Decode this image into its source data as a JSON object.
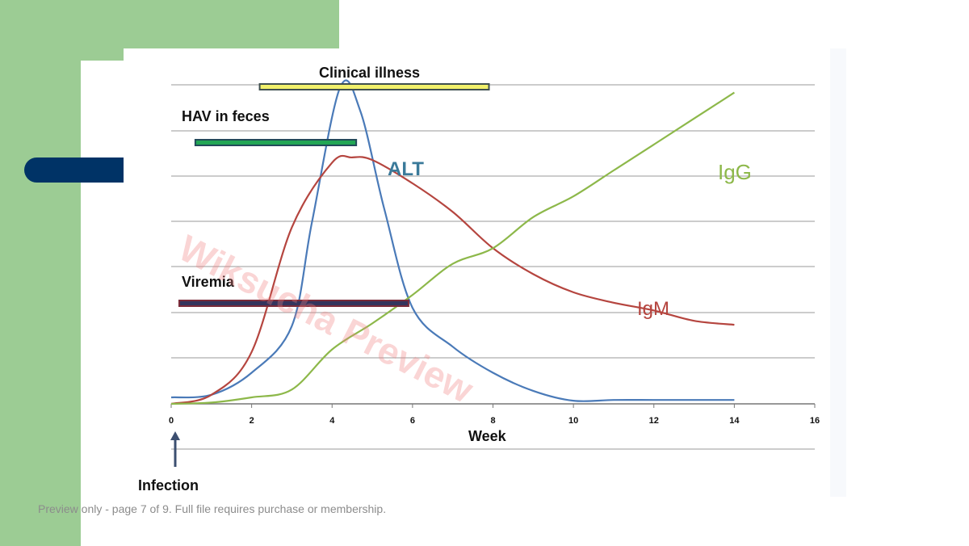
{
  "footer": {
    "text": "Preview only - page 7 of 9. Full file requires purchase or membership."
  },
  "watermark": {
    "text": "Wiksucha Preview"
  },
  "colors": {
    "green_panel": "#9ccc94",
    "navy_pill": "#003366",
    "alt": "#4a7ab8",
    "igm": "#b5453f",
    "igg": "#8db84a",
    "clinical_bar": "#f1f06a",
    "feces_bar": "#22a654",
    "viremia_bar": "#34355e"
  },
  "chart_data": {
    "type": "line",
    "xlabel": "Week",
    "xlim": [
      0,
      16
    ],
    "xticks": [
      "0",
      "2",
      "4",
      "6",
      "8",
      "10",
      "12",
      "14",
      "16"
    ],
    "grid": true,
    "series": [
      {
        "name": "ALT",
        "points": [
          [
            0,
            0.25
          ],
          [
            1,
            0.35
          ],
          [
            2,
            1.2
          ],
          [
            3,
            3.0
          ],
          [
            3.5,
            7.0
          ],
          [
            4.2,
            12.2
          ],
          [
            4.7,
            11.3
          ],
          [
            5.3,
            7.5
          ],
          [
            6,
            3.7
          ],
          [
            7,
            2.2
          ],
          [
            8,
            1.2
          ],
          [
            9,
            0.5
          ],
          [
            10,
            0.12
          ],
          [
            11,
            0.15
          ],
          [
            12,
            0.15
          ],
          [
            13,
            0.15
          ],
          [
            14,
            0.15
          ]
        ]
      },
      {
        "name": "IgM",
        "points": [
          [
            0,
            0.0
          ],
          [
            1,
            0.35
          ],
          [
            2,
            2.0
          ],
          [
            3,
            6.8
          ],
          [
            4,
            9.3
          ],
          [
            4.5,
            9.5
          ],
          [
            5,
            9.4
          ],
          [
            6,
            8.5
          ],
          [
            7,
            7.4
          ],
          [
            8,
            6.0
          ],
          [
            9,
            5.0
          ],
          [
            10,
            4.3
          ],
          [
            11,
            3.9
          ],
          [
            12,
            3.6
          ],
          [
            13,
            3.2
          ],
          [
            14,
            3.05
          ]
        ]
      },
      {
        "name": "IgG",
        "points": [
          [
            0,
            0.0
          ],
          [
            1,
            0.05
          ],
          [
            2,
            0.25
          ],
          [
            3,
            0.55
          ],
          [
            4,
            2.1
          ],
          [
            5,
            3.1
          ],
          [
            6,
            4.2
          ],
          [
            7,
            5.4
          ],
          [
            8,
            6.0
          ],
          [
            9,
            7.2
          ],
          [
            10,
            8.0
          ],
          [
            11,
            9.0
          ],
          [
            12,
            10.0
          ],
          [
            13,
            11.0
          ],
          [
            14,
            12.0
          ]
        ]
      }
    ],
    "periods": [
      {
        "name": "Clinical illness",
        "start": 2.2,
        "end": 7.9
      },
      {
        "name": "HAV in feces",
        "start": 0.6,
        "end": 4.6
      },
      {
        "name": "Viremia",
        "start": 0.2,
        "end": 5.9
      }
    ],
    "annotations": {
      "infection": "Infection",
      "infection_week": 0.1
    },
    "ylim": [
      0,
      12.3
    ]
  }
}
